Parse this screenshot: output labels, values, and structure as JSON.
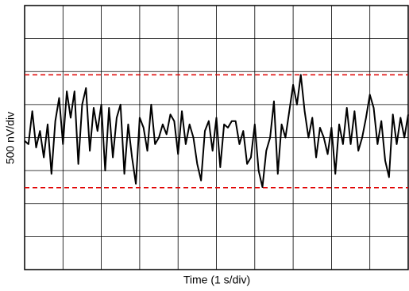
{
  "chart_data": {
    "type": "line",
    "x_label": "Time (1 s/div)",
    "y_label": "500 nV/div",
    "xlim": [
      0,
      10
    ],
    "ylim": [
      -2000,
      2000
    ],
    "xticks": [
      0,
      1,
      2,
      3,
      4,
      5,
      6,
      7,
      8,
      9,
      10
    ],
    "yticks": [
      -2000,
      -1500,
      -1000,
      -500,
      0,
      500,
      1000,
      1500,
      2000
    ],
    "grid": true,
    "reference_lines": [
      {
        "value": 950,
        "color": "#e00000"
      },
      {
        "value": -760,
        "color": "#e00000"
      }
    ],
    "x": [
      0,
      0.1,
      0.2,
      0.3,
      0.4,
      0.5,
      0.6,
      0.7,
      0.8,
      0.9,
      1,
      1.1,
      1.2,
      1.3,
      1.4,
      1.5,
      1.6,
      1.7,
      1.8,
      1.9,
      2,
      2.1,
      2.2,
      2.3,
      2.4,
      2.5,
      2.6,
      2.7,
      2.8,
      2.9,
      3,
      3.1,
      3.2,
      3.3,
      3.4,
      3.5,
      3.6,
      3.7,
      3.8,
      3.9,
      4,
      4.1,
      4.2,
      4.3,
      4.4,
      4.5,
      4.6,
      4.7,
      4.8,
      4.9,
      5,
      5.1,
      5.2,
      5.3,
      5.4,
      5.5,
      5.6,
      5.7,
      5.8,
      5.9,
      6,
      6.1,
      6.2,
      6.3,
      6.4,
      6.5,
      6.6,
      6.7,
      6.8,
      6.9,
      7,
      7.1,
      7.2,
      7.3,
      7.4,
      7.5,
      7.6,
      7.7,
      7.8,
      7.9,
      8,
      8.1,
      8.2,
      8.3,
      8.4,
      8.5,
      8.6,
      8.7,
      8.8,
      8.9,
      9,
      9.1,
      9.2,
      9.3,
      9.4,
      9.5,
      9.6,
      9.7,
      9.8,
      9.9,
      10
    ],
    "series": [
      {
        "color": "#000000",
        "values": [
          -50,
          -100,
          400,
          -150,
          100,
          -300,
          200,
          -550,
          250,
          600,
          -100,
          700,
          300,
          700,
          -400,
          500,
          750,
          -200,
          450,
          100,
          500,
          -500,
          450,
          -300,
          300,
          500,
          -550,
          200,
          -300,
          -700,
          300,
          150,
          -200,
          500,
          -100,
          0,
          200,
          50,
          350,
          250,
          -250,
          400,
          -100,
          200,
          0,
          -400,
          -650,
          100,
          250,
          -200,
          300,
          -450,
          200,
          150,
          250,
          250,
          -100,
          100,
          -400,
          -300,
          200,
          -500,
          -750,
          -200,
          0,
          550,
          -550,
          200,
          0,
          400,
          800,
          500,
          950,
          400,
          0,
          300,
          -300,
          150,
          0,
          -250,
          150,
          -550,
          200,
          -100,
          450,
          -100,
          400,
          -200,
          0,
          300,
          650,
          450,
          -100,
          250,
          -350,
          -600,
          350,
          -100,
          300,
          0,
          350
        ]
      }
    ]
  }
}
